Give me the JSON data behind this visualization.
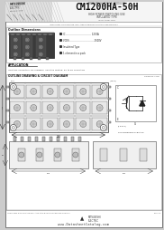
{
  "bg_color": "#cccccc",
  "page_bg": "#ffffff",
  "title_small": "MITSUBISHI POWER MODULES",
  "title_main": "CM1200HA-50H",
  "subtitle1": "HIGH POWER SWITCHING USE",
  "subtitle2": "INSULATED TYPE",
  "desc_line": "INTELLIGENT HIGH-VOLTAGE INSULATED GATE BIPOLAR TRANSISTOR MODULES",
  "section1_title": "Outline Dimensions",
  "spec_ic": "IC ..................................... 1200A",
  "spec_vces": "VCES ................................... 2500V",
  "spec_ins": "Insulated Type",
  "spec_elem": "1 element in a pack",
  "app_title": "APPLICATION",
  "app_text": "Inverters, Converters, DC choppers, Induction heating, DC to DC converters",
  "outline_title": "OUTLINE DRAWING & CIRCUIT DIAGRAM",
  "watermark": "www.DatasheetCatalog.com",
  "footer_text": "INTELLIGENT HIGH VOLTAGE INSULATED GATE BIPOLAR TRANSISTOR MODULES",
  "footer_rev": "Rev: 2.0"
}
